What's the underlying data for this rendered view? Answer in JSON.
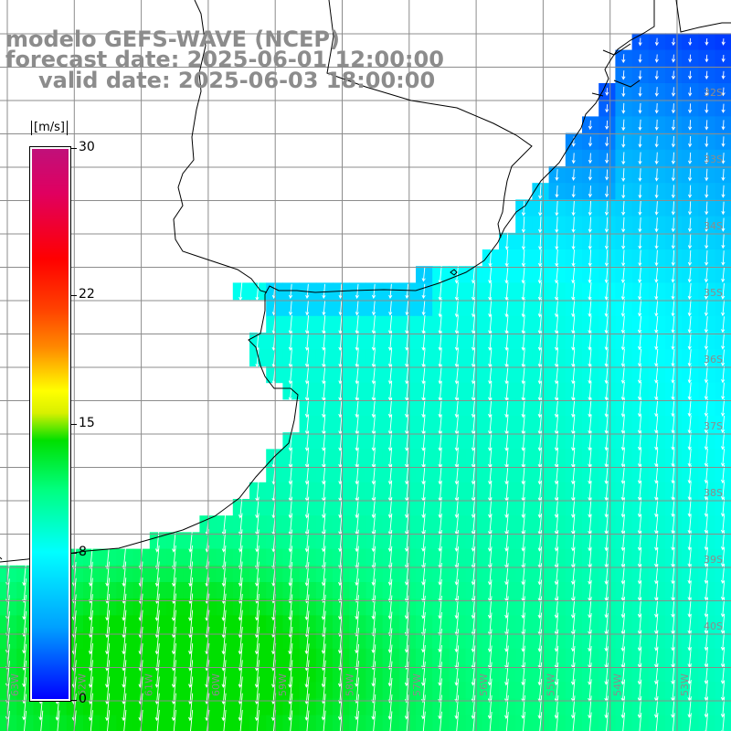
{
  "title": {
    "model": "modelo GEFS-WAVE (NCEP)",
    "forecast": "forecast date: 2025-06-01 12:00:00",
    "valid": "valid date: 2025-06-03 18:00:00"
  },
  "colorbar": {
    "unit": "[m/s]",
    "min": 0,
    "max": 30,
    "labels": [
      "30",
      "22",
      "15",
      "8",
      "0"
    ],
    "label_values": [
      30,
      22,
      15,
      8,
      0
    ]
  },
  "map": {
    "variable": "wind speed and direction over water",
    "lon_labels": [
      "63W",
      "62W",
      "61W",
      "60W",
      "59W",
      "58W",
      "57W",
      "56W",
      "55W",
      "54W",
      "53W"
    ],
    "lat_labels": [
      "32S",
      "33S",
      "34S",
      "35S",
      "36S",
      "37S",
      "38S",
      "39S",
      "40S"
    ],
    "land_color": "#ffffff",
    "grid_color": "#8c8c8c",
    "arrow_color": "#ffffff",
    "title_color": "#8c8c8c"
  }
}
